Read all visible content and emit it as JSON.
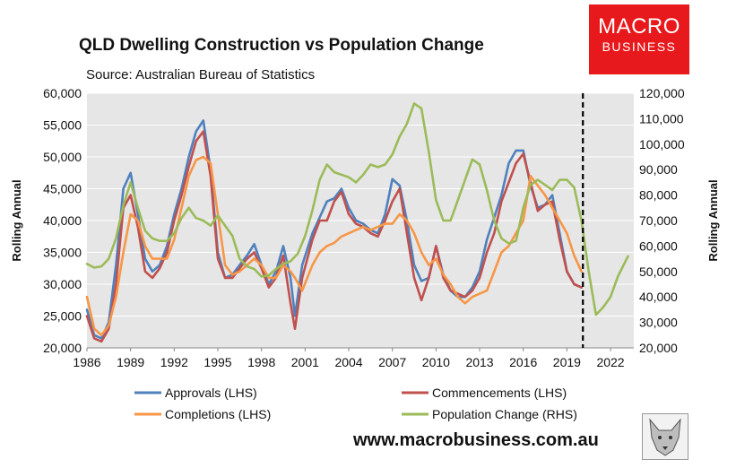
{
  "brand": {
    "line1": "MACRO",
    "line2": "BUSINESS"
  },
  "website": "www.macrobusiness.com.au",
  "chart_data": {
    "type": "line",
    "title": "QLD Dwelling Construction vs Population Change",
    "subtitle": "Source: Australian Bureau of Statistics",
    "ylabel": "Rolling Annual",
    "y2label": "Rolling Annual",
    "xlim": [
      1986,
      2023.6
    ],
    "ylim": [
      20000,
      60000
    ],
    "y2lim": [
      20000,
      120000
    ],
    "xticks": [
      1986,
      1989,
      1992,
      1995,
      1998,
      2001,
      2004,
      2007,
      2010,
      2013,
      2016,
      2019,
      2022
    ],
    "yticks": [
      20000,
      25000,
      30000,
      35000,
      40000,
      45000,
      50000,
      55000,
      60000
    ],
    "y2ticks": [
      20000,
      30000,
      40000,
      50000,
      60000,
      70000,
      80000,
      90000,
      100000,
      110000,
      120000
    ],
    "xtick_labels": [
      "1986",
      "1989",
      "1992",
      "1995",
      "1998",
      "2001",
      "2004",
      "2007",
      "2010",
      "2013",
      "2016",
      "2019",
      "2022"
    ],
    "ytick_labels": [
      "20,000",
      "25,000",
      "30,000",
      "35,000",
      "40,000",
      "45,000",
      "50,000",
      "55,000",
      "60,000"
    ],
    "y2tick_labels": [
      "20,000",
      "30,000",
      "40,000",
      "50,000",
      "60,000",
      "70,000",
      "80,000",
      "90,000",
      "100,000",
      "110,000",
      "120,000"
    ],
    "forecast_divider_x": 2020.1,
    "series": [
      {
        "name": "Approvals (LHS)",
        "axis": "left",
        "color": "#4f81bd",
        "points": [
          [
            1986,
            26000
          ],
          [
            1986.5,
            22000
          ],
          [
            1987,
            21500
          ],
          [
            1987.5,
            24000
          ],
          [
            1988,
            33000
          ],
          [
            1988.5,
            45000
          ],
          [
            1989,
            47500
          ],
          [
            1989.5,
            41000
          ],
          [
            1990,
            34000
          ],
          [
            1990.5,
            32000
          ],
          [
            1991,
            33000
          ],
          [
            1991.5,
            36000
          ],
          [
            1992,
            41000
          ],
          [
            1992.5,
            45000
          ],
          [
            1993,
            50000
          ],
          [
            1993.5,
            54000
          ],
          [
            1994,
            55700
          ],
          [
            1994.5,
            48000
          ],
          [
            1995,
            35000
          ],
          [
            1995.5,
            31000
          ],
          [
            1996,
            31500
          ],
          [
            1996.5,
            33000
          ],
          [
            1997,
            34500
          ],
          [
            1997.5,
            36300
          ],
          [
            1998,
            33000
          ],
          [
            1998.5,
            30000
          ],
          [
            1999,
            32000
          ],
          [
            1999.5,
            36000
          ],
          [
            2000,
            31000
          ],
          [
            2000.3,
            25000
          ],
          [
            2000.8,
            33000
          ],
          [
            2001.5,
            38000
          ],
          [
            2002,
            40500
          ],
          [
            2002.5,
            43000
          ],
          [
            2003,
            43500
          ],
          [
            2003.5,
            45000
          ],
          [
            2004,
            42000
          ],
          [
            2004.5,
            40000
          ],
          [
            2005,
            39500
          ],
          [
            2005.5,
            38500
          ],
          [
            2006,
            38000
          ],
          [
            2006.5,
            41000
          ],
          [
            2007,
            46500
          ],
          [
            2007.5,
            45500
          ],
          [
            2008,
            40000
          ],
          [
            2008.5,
            33000
          ],
          [
            2009,
            30500
          ],
          [
            2009.5,
            31000
          ],
          [
            2010,
            36000
          ],
          [
            2010.5,
            31500
          ],
          [
            2011,
            29000
          ],
          [
            2011.5,
            28000
          ],
          [
            2012,
            28000
          ],
          [
            2012.5,
            29500
          ],
          [
            2013,
            32000
          ],
          [
            2013.5,
            37000
          ],
          [
            2014,
            40500
          ],
          [
            2014.5,
            44000
          ],
          [
            2015,
            49000
          ],
          [
            2015.5,
            51000
          ],
          [
            2016,
            51000
          ],
          [
            2016.5,
            45500
          ],
          [
            2017,
            42000
          ],
          [
            2017.5,
            42500
          ],
          [
            2018,
            44000
          ],
          [
            2018.5,
            38000
          ],
          [
            2019,
            32000
          ],
          [
            2019.5,
            30000
          ],
          [
            2020,
            29500
          ]
        ]
      },
      {
        "name": "Commencements (LHS)",
        "axis": "left",
        "color": "#c0504d",
        "points": [
          [
            1986,
            25000
          ],
          [
            1986.5,
            21500
          ],
          [
            1987,
            21000
          ],
          [
            1987.5,
            23000
          ],
          [
            1988,
            30000
          ],
          [
            1988.5,
            42000
          ],
          [
            1989,
            44000
          ],
          [
            1989.5,
            39000
          ],
          [
            1990,
            32000
          ],
          [
            1990.5,
            31000
          ],
          [
            1991,
            32500
          ],
          [
            1991.5,
            35000
          ],
          [
            1992,
            40000
          ],
          [
            1992.5,
            44000
          ],
          [
            1993,
            48500
          ],
          [
            1993.5,
            52500
          ],
          [
            1994,
            54000
          ],
          [
            1994.5,
            47000
          ],
          [
            1995,
            34000
          ],
          [
            1995.5,
            31000
          ],
          [
            1996,
            31000
          ],
          [
            1996.5,
            32500
          ],
          [
            1997,
            34000
          ],
          [
            1997.5,
            35000
          ],
          [
            1998,
            32500
          ],
          [
            1998.5,
            29500
          ],
          [
            1999,
            31000
          ],
          [
            1999.5,
            34500
          ],
          [
            2000,
            27000
          ],
          [
            2000.3,
            23000
          ],
          [
            2000.8,
            31000
          ],
          [
            2001.5,
            37000
          ],
          [
            2002,
            40000
          ],
          [
            2002.5,
            40000
          ],
          [
            2003,
            43000
          ],
          [
            2003.5,
            44500
          ],
          [
            2004,
            41000
          ],
          [
            2004.5,
            39500
          ],
          [
            2005,
            39000
          ],
          [
            2005.5,
            38000
          ],
          [
            2006,
            37500
          ],
          [
            2006.5,
            40000
          ],
          [
            2007,
            43000
          ],
          [
            2007.5,
            45000
          ],
          [
            2008,
            38000
          ],
          [
            2008.5,
            31000
          ],
          [
            2009,
            27500
          ],
          [
            2009.5,
            31000
          ],
          [
            2010,
            36000
          ],
          [
            2010.5,
            31000
          ],
          [
            2011,
            29000
          ],
          [
            2011.5,
            28500
          ],
          [
            2012,
            28000
          ],
          [
            2012.5,
            29000
          ],
          [
            2013,
            31000
          ],
          [
            2013.5,
            35000
          ],
          [
            2014,
            38000
          ],
          [
            2014.5,
            43000
          ],
          [
            2015,
            46000
          ],
          [
            2015.5,
            49000
          ],
          [
            2016,
            50500
          ],
          [
            2016.5,
            46000
          ],
          [
            2017,
            41500
          ],
          [
            2017.5,
            42500
          ],
          [
            2018,
            43000
          ],
          [
            2018.5,
            37000
          ],
          [
            2019,
            32000
          ],
          [
            2019.5,
            30000
          ],
          [
            2020,
            29500
          ]
        ]
      },
      {
        "name": "Completions (LHS)",
        "axis": "left",
        "color": "#f79646",
        "points": [
          [
            1986,
            28000
          ],
          [
            1986.5,
            23000
          ],
          [
            1987,
            22000
          ],
          [
            1987.5,
            23500
          ],
          [
            1988,
            28000
          ],
          [
            1988.5,
            35000
          ],
          [
            1989,
            41000
          ],
          [
            1989.5,
            40000
          ],
          [
            1990,
            36000
          ],
          [
            1990.5,
            34000
          ],
          [
            1991,
            34000
          ],
          [
            1991.5,
            34000
          ],
          [
            1992,
            37000
          ],
          [
            1992.5,
            42000
          ],
          [
            1993,
            47000
          ],
          [
            1993.5,
            49500
          ],
          [
            1994,
            50000
          ],
          [
            1994.5,
            49000
          ],
          [
            1995,
            41000
          ],
          [
            1995.5,
            33000
          ],
          [
            1996,
            31500
          ],
          [
            1996.5,
            32000
          ],
          [
            1997,
            33000
          ],
          [
            1997.5,
            34000
          ],
          [
            1998,
            33000
          ],
          [
            1998.5,
            31000
          ],
          [
            1999,
            31000
          ],
          [
            1999.5,
            33000
          ],
          [
            2000,
            32000
          ],
          [
            2000.3,
            31000
          ],
          [
            2000.8,
            29000
          ],
          [
            2001.5,
            33000
          ],
          [
            2002,
            35000
          ],
          [
            2002.5,
            36000
          ],
          [
            2003,
            36500
          ],
          [
            2003.5,
            37500
          ],
          [
            2004,
            38000
          ],
          [
            2004.5,
            38500
          ],
          [
            2005,
            39000
          ],
          [
            2005.5,
            38500
          ],
          [
            2006,
            39000
          ],
          [
            2006.5,
            39500
          ],
          [
            2007,
            39500
          ],
          [
            2007.5,
            41000
          ],
          [
            2008,
            40000
          ],
          [
            2008.5,
            38000
          ],
          [
            2009,
            35000
          ],
          [
            2009.5,
            33000
          ],
          [
            2010,
            34000
          ],
          [
            2010.5,
            31500
          ],
          [
            2011,
            30000
          ],
          [
            2011.5,
            28000
          ],
          [
            2012,
            27000
          ],
          [
            2012.5,
            28000
          ],
          [
            2013,
            28500
          ],
          [
            2013.5,
            29000
          ],
          [
            2014,
            32000
          ],
          [
            2014.5,
            35000
          ],
          [
            2015,
            36000
          ],
          [
            2015.5,
            38000
          ],
          [
            2016,
            40000
          ],
          [
            2016.5,
            47000
          ],
          [
            2017,
            45500
          ],
          [
            2017.5,
            44000
          ],
          [
            2018,
            42000
          ],
          [
            2018.5,
            40000
          ],
          [
            2019,
            38000
          ],
          [
            2019.5,
            34500
          ],
          [
            2020,
            32000
          ]
        ]
      },
      {
        "name": "Population Change (RHS)",
        "axis": "right",
        "color": "#9bbb59",
        "points": [
          [
            1986,
            53000
          ],
          [
            1986.5,
            51500
          ],
          [
            1987,
            52000
          ],
          [
            1987.5,
            55000
          ],
          [
            1988,
            63000
          ],
          [
            1988.5,
            76000
          ],
          [
            1989,
            85000
          ],
          [
            1989.5,
            75000
          ],
          [
            1990,
            66000
          ],
          [
            1990.5,
            63000
          ],
          [
            1991,
            62000
          ],
          [
            1991.5,
            62000
          ],
          [
            1992,
            65000
          ],
          [
            1992.5,
            71000
          ],
          [
            1993,
            75000
          ],
          [
            1993.5,
            71000
          ],
          [
            1994,
            70000
          ],
          [
            1994.5,
            68000
          ],
          [
            1995,
            72000
          ],
          [
            1995.5,
            68000
          ],
          [
            1996,
            64000
          ],
          [
            1996.5,
            55000
          ],
          [
            1997,
            52000
          ],
          [
            1997.5,
            51000
          ],
          [
            1998,
            48000
          ],
          [
            1998.5,
            48500
          ],
          [
            1999,
            51000
          ],
          [
            1999.5,
            53000
          ],
          [
            2000,
            54000
          ],
          [
            2000.5,
            57000
          ],
          [
            2001,
            64000
          ],
          [
            2001.5,
            74000
          ],
          [
            2002,
            86000
          ],
          [
            2002.5,
            92000
          ],
          [
            2003,
            89000
          ],
          [
            2003.5,
            88000
          ],
          [
            2004,
            87000
          ],
          [
            2004.5,
            85000
          ],
          [
            2005,
            88000
          ],
          [
            2005.5,
            92000
          ],
          [
            2006,
            91000
          ],
          [
            2006.5,
            92000
          ],
          [
            2007,
            96000
          ],
          [
            2007.5,
            103000
          ],
          [
            2008,
            108000
          ],
          [
            2008.5,
            116000
          ],
          [
            2009,
            114000
          ],
          [
            2009.5,
            97000
          ],
          [
            2010,
            78000
          ],
          [
            2010.5,
            70000
          ],
          [
            2011,
            70000
          ],
          [
            2011.5,
            78000
          ],
          [
            2012,
            86000
          ],
          [
            2012.5,
            94000
          ],
          [
            2013,
            92000
          ],
          [
            2013.5,
            82000
          ],
          [
            2014,
            70000
          ],
          [
            2014.5,
            63000
          ],
          [
            2015,
            61000
          ],
          [
            2015.5,
            62000
          ],
          [
            2016,
            75000
          ],
          [
            2016.5,
            84000
          ],
          [
            2017,
            86000
          ],
          [
            2017.5,
            84000
          ],
          [
            2018,
            82000
          ],
          [
            2018.5,
            86000
          ],
          [
            2019,
            86000
          ],
          [
            2019.5,
            83000
          ],
          [
            2020,
            70000
          ],
          [
            2020.5,
            50000
          ],
          [
            2021,
            33000
          ],
          [
            2021.5,
            36000
          ],
          [
            2022,
            40000
          ],
          [
            2022.5,
            48000
          ],
          [
            2023.2,
            56000
          ]
        ]
      }
    ]
  }
}
